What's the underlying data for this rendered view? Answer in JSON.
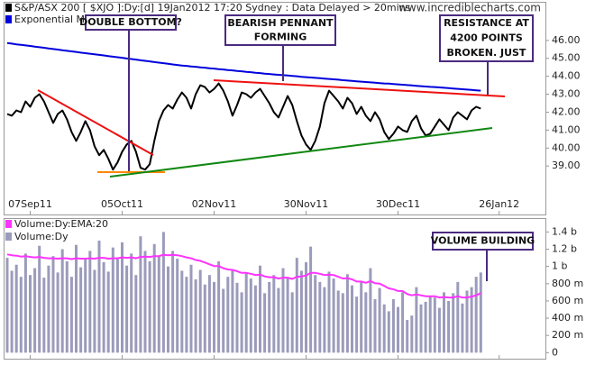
{
  "chart_data": [
    {
      "type": "line",
      "watermark": "www.incrediblecharts.com",
      "categories": [
        null,
        null,
        null,
        null,
        null,
        "07Sep11",
        null,
        null,
        null,
        null,
        null,
        null,
        null,
        null,
        null,
        null,
        null,
        null,
        null,
        null,
        null,
        null,
        null,
        null,
        null,
        "05Oct11",
        null,
        null,
        null,
        null,
        null,
        null,
        null,
        null,
        null,
        null,
        null,
        null,
        null,
        null,
        null,
        null,
        null,
        null,
        null,
        "02Nov11",
        null,
        null,
        null,
        null,
        null,
        null,
        null,
        null,
        null,
        null,
        null,
        null,
        null,
        null,
        null,
        null,
        null,
        null,
        null,
        "30Nov11",
        null,
        null,
        null,
        null,
        null,
        null,
        null,
        null,
        null,
        null,
        null,
        null,
        null,
        null,
        null,
        null,
        null,
        null,
        null,
        "30Dec11",
        null,
        null,
        null,
        null,
        null,
        null,
        null,
        null,
        null,
        null,
        null,
        null,
        null,
        null,
        null,
        null,
        null,
        null,
        null,
        null,
        null,
        "26Jan12"
      ],
      "series": [
        {
          "name": "S&P/ASX 200 [ $XJO ]:Dy:[d] 19Jan2012 17:20 Sydney : Data Delayed > 20mins",
          "color": "#000000",
          "values": [
            41.9,
            41.8,
            42.1,
            42.0,
            42.6,
            42.3,
            42.8,
            43.0,
            42.6,
            42.0,
            41.4,
            41.9,
            42.1,
            41.6,
            40.9,
            40.4,
            40.9,
            41.5,
            41.0,
            40.1,
            39.6,
            39.9,
            39.4,
            38.8,
            39.2,
            39.8,
            40.2,
            40.4,
            39.8,
            38.9,
            38.8,
            39.1,
            40.4,
            41.5,
            42.1,
            42.4,
            42.2,
            42.7,
            43.1,
            42.8,
            42.2,
            43.0,
            43.5,
            43.4,
            43.1,
            43.3,
            43.6,
            43.2,
            42.6,
            41.8,
            42.4,
            43.1,
            43.0,
            42.8,
            43.1,
            43.3,
            42.9,
            42.5,
            42.0,
            41.7,
            42.3,
            42.9,
            42.4,
            41.5,
            40.7,
            40.2,
            39.9,
            40.4,
            41.2,
            42.5,
            43.2,
            42.9,
            42.6,
            42.2,
            42.8,
            42.5,
            41.9,
            42.3,
            41.8,
            41.5,
            42.0,
            41.6,
            40.9,
            40.5,
            40.8,
            41.2,
            41.0,
            40.9,
            41.5,
            41.8,
            41.1,
            40.7,
            40.8,
            41.2,
            41.6,
            41.3,
            41.0,
            41.7,
            42.0,
            41.8,
            41.6,
            42.1,
            42.3,
            42.2,
            null,
            null,
            null,
            null
          ]
        },
        {
          "name": "Exponential MA:Dy:200",
          "color": "#0000dd",
          "values": [
            45.85,
            45.82,
            45.78,
            45.75,
            45.72,
            45.69,
            45.65,
            45.62,
            45.59,
            45.55,
            45.52,
            45.49,
            45.45,
            45.42,
            45.39,
            45.36,
            45.32,
            45.29,
            45.26,
            45.22,
            45.19,
            45.16,
            45.12,
            45.09,
            45.06,
            45.03,
            44.99,
            44.96,
            44.93,
            44.89,
            44.86,
            44.83,
            44.79,
            44.76,
            44.73,
            44.7,
            44.66,
            44.63,
            44.6,
            44.58,
            44.55,
            44.53,
            44.5,
            44.48,
            44.45,
            44.43,
            44.4,
            44.38,
            44.35,
            44.33,
            44.3,
            44.28,
            44.25,
            44.23,
            44.2,
            44.18,
            44.15,
            44.13,
            44.1,
            44.08,
            44.06,
            44.04,
            44.02,
            44.0,
            43.97,
            43.95,
            43.93,
            43.91,
            43.89,
            43.87,
            43.85,
            43.83,
            43.81,
            43.78,
            43.76,
            43.74,
            43.72,
            43.7,
            43.68,
            43.66,
            43.64,
            43.62,
            43.6,
            43.59,
            43.57,
            43.55,
            43.53,
            43.51,
            43.49,
            43.47,
            43.45,
            43.43,
            43.41,
            43.4,
            43.38,
            43.36,
            43.34,
            43.32,
            43.3,
            43.28,
            43.26,
            43.24,
            43.22,
            43.2,
            null,
            null,
            null,
            null
          ]
        }
      ],
      "ylim": [
        36.9,
        48.0
      ],
      "yticks": [
        {
          "value": 39,
          "label": "39.00"
        },
        {
          "value": 40,
          "label": "40.00"
        },
        {
          "value": 41,
          "label": "41.00"
        },
        {
          "value": 42,
          "label": "42.00"
        },
        {
          "value": 43,
          "label": "43.00"
        },
        {
          "value": 44,
          "label": "44.00"
        },
        {
          "value": 45,
          "label": "45.00"
        },
        {
          "value": 46,
          "label": "46.00"
        }
      ],
      "annotations": [
        {
          "lines": [
            "DOUBLE BOTTOM?"
          ]
        },
        {
          "lines": [
            "BEARISH PENNANT",
            "FORMING"
          ]
        },
        {
          "lines": [
            "RESISTANCE AT",
            "4200 POINTS",
            "BROKEN. JUST"
          ]
        }
      ]
    },
    {
      "type": "bar",
      "series": [
        {
          "name": "Volume:Dy:EMA:20",
          "type": "line",
          "color": "#ff33ff",
          "values": [
            1140,
            1130,
            1125,
            1115,
            1120,
            1110,
            1105,
            1110,
            1100,
            1095,
            1095,
            1090,
            1095,
            1095,
            1085,
            1095,
            1090,
            1090,
            1095,
            1090,
            1100,
            1100,
            1090,
            1095,
            1095,
            1105,
            1100,
            1105,
            1095,
            1110,
            1115,
            1110,
            1120,
            1120,
            1135,
            1130,
            1135,
            1130,
            1120,
            1105,
            1095,
            1075,
            1065,
            1045,
            1025,
            1005,
            1005,
            980,
            965,
            960,
            945,
            925,
            925,
            915,
            900,
            905,
            885,
            875,
            875,
            860,
            870,
            870,
            855,
            880,
            885,
            895,
            925,
            925,
            915,
            900,
            905,
            900,
            880,
            860,
            865,
            850,
            825,
            825,
            810,
            830,
            805,
            800,
            775,
            745,
            735,
            715,
            715,
            680,
            665,
            675,
            665,
            655,
            655,
            655,
            640,
            645,
            640,
            640,
            655,
            640,
            640,
            650,
            665,
            690,
            null,
            null,
            null,
            null
          ]
        },
        {
          "name": "Volume:Dy",
          "type": "bar",
          "color": "#9b9bbb",
          "values": [
            1100,
            950,
            1020,
            880,
            1150,
            900,
            980,
            1240,
            870,
            1010,
            1120,
            930,
            1200,
            1060,
            880,
            1250,
            990,
            1080,
            1180,
            960,
            1300,
            1050,
            940,
            1220,
            1100,
            1280,
            1010,
            1150,
            900,
            1350,
            1180,
            1060,
            1260,
            1120,
            1400,
            1000,
            1180,
            1090,
            950,
            880,
            1020,
            850,
            960,
            790,
            900,
            820,
            1060,
            740,
            880,
            960,
            810,
            700,
            930,
            860,
            780,
            1010,
            690,
            820,
            900,
            750,
            980,
            870,
            700,
            1100,
            950,
            1050,
            1230,
            900,
            820,
            760,
            940,
            860,
            720,
            690,
            910,
            780,
            650,
            830,
            700,
            980,
            620,
            750,
            560,
            480,
            620,
            530,
            700,
            380,
            430,
            760,
            560,
            590,
            660,
            640,
            520,
            700,
            600,
            690,
            820,
            570,
            720,
            760,
            880,
            930,
            null,
            null,
            null,
            null
          ]
        }
      ],
      "ylim": [
        -70,
        1540
      ],
      "yticks": [
        0,
        {
          "value": 200,
          "label": "200 m"
        },
        {
          "value": 400,
          "label": "400 m"
        },
        {
          "value": 600,
          "label": "600 m"
        },
        {
          "value": 800,
          "label": "800 m"
        },
        {
          "value": 1000,
          "label": "1 b"
        },
        {
          "value": 1200,
          "label": "1.2 b"
        },
        {
          "value": 1400,
          "label": "1.4 b"
        }
      ],
      "annotations": [
        {
          "lines": [
            "VOLUME BUILDING"
          ]
        }
      ]
    }
  ]
}
